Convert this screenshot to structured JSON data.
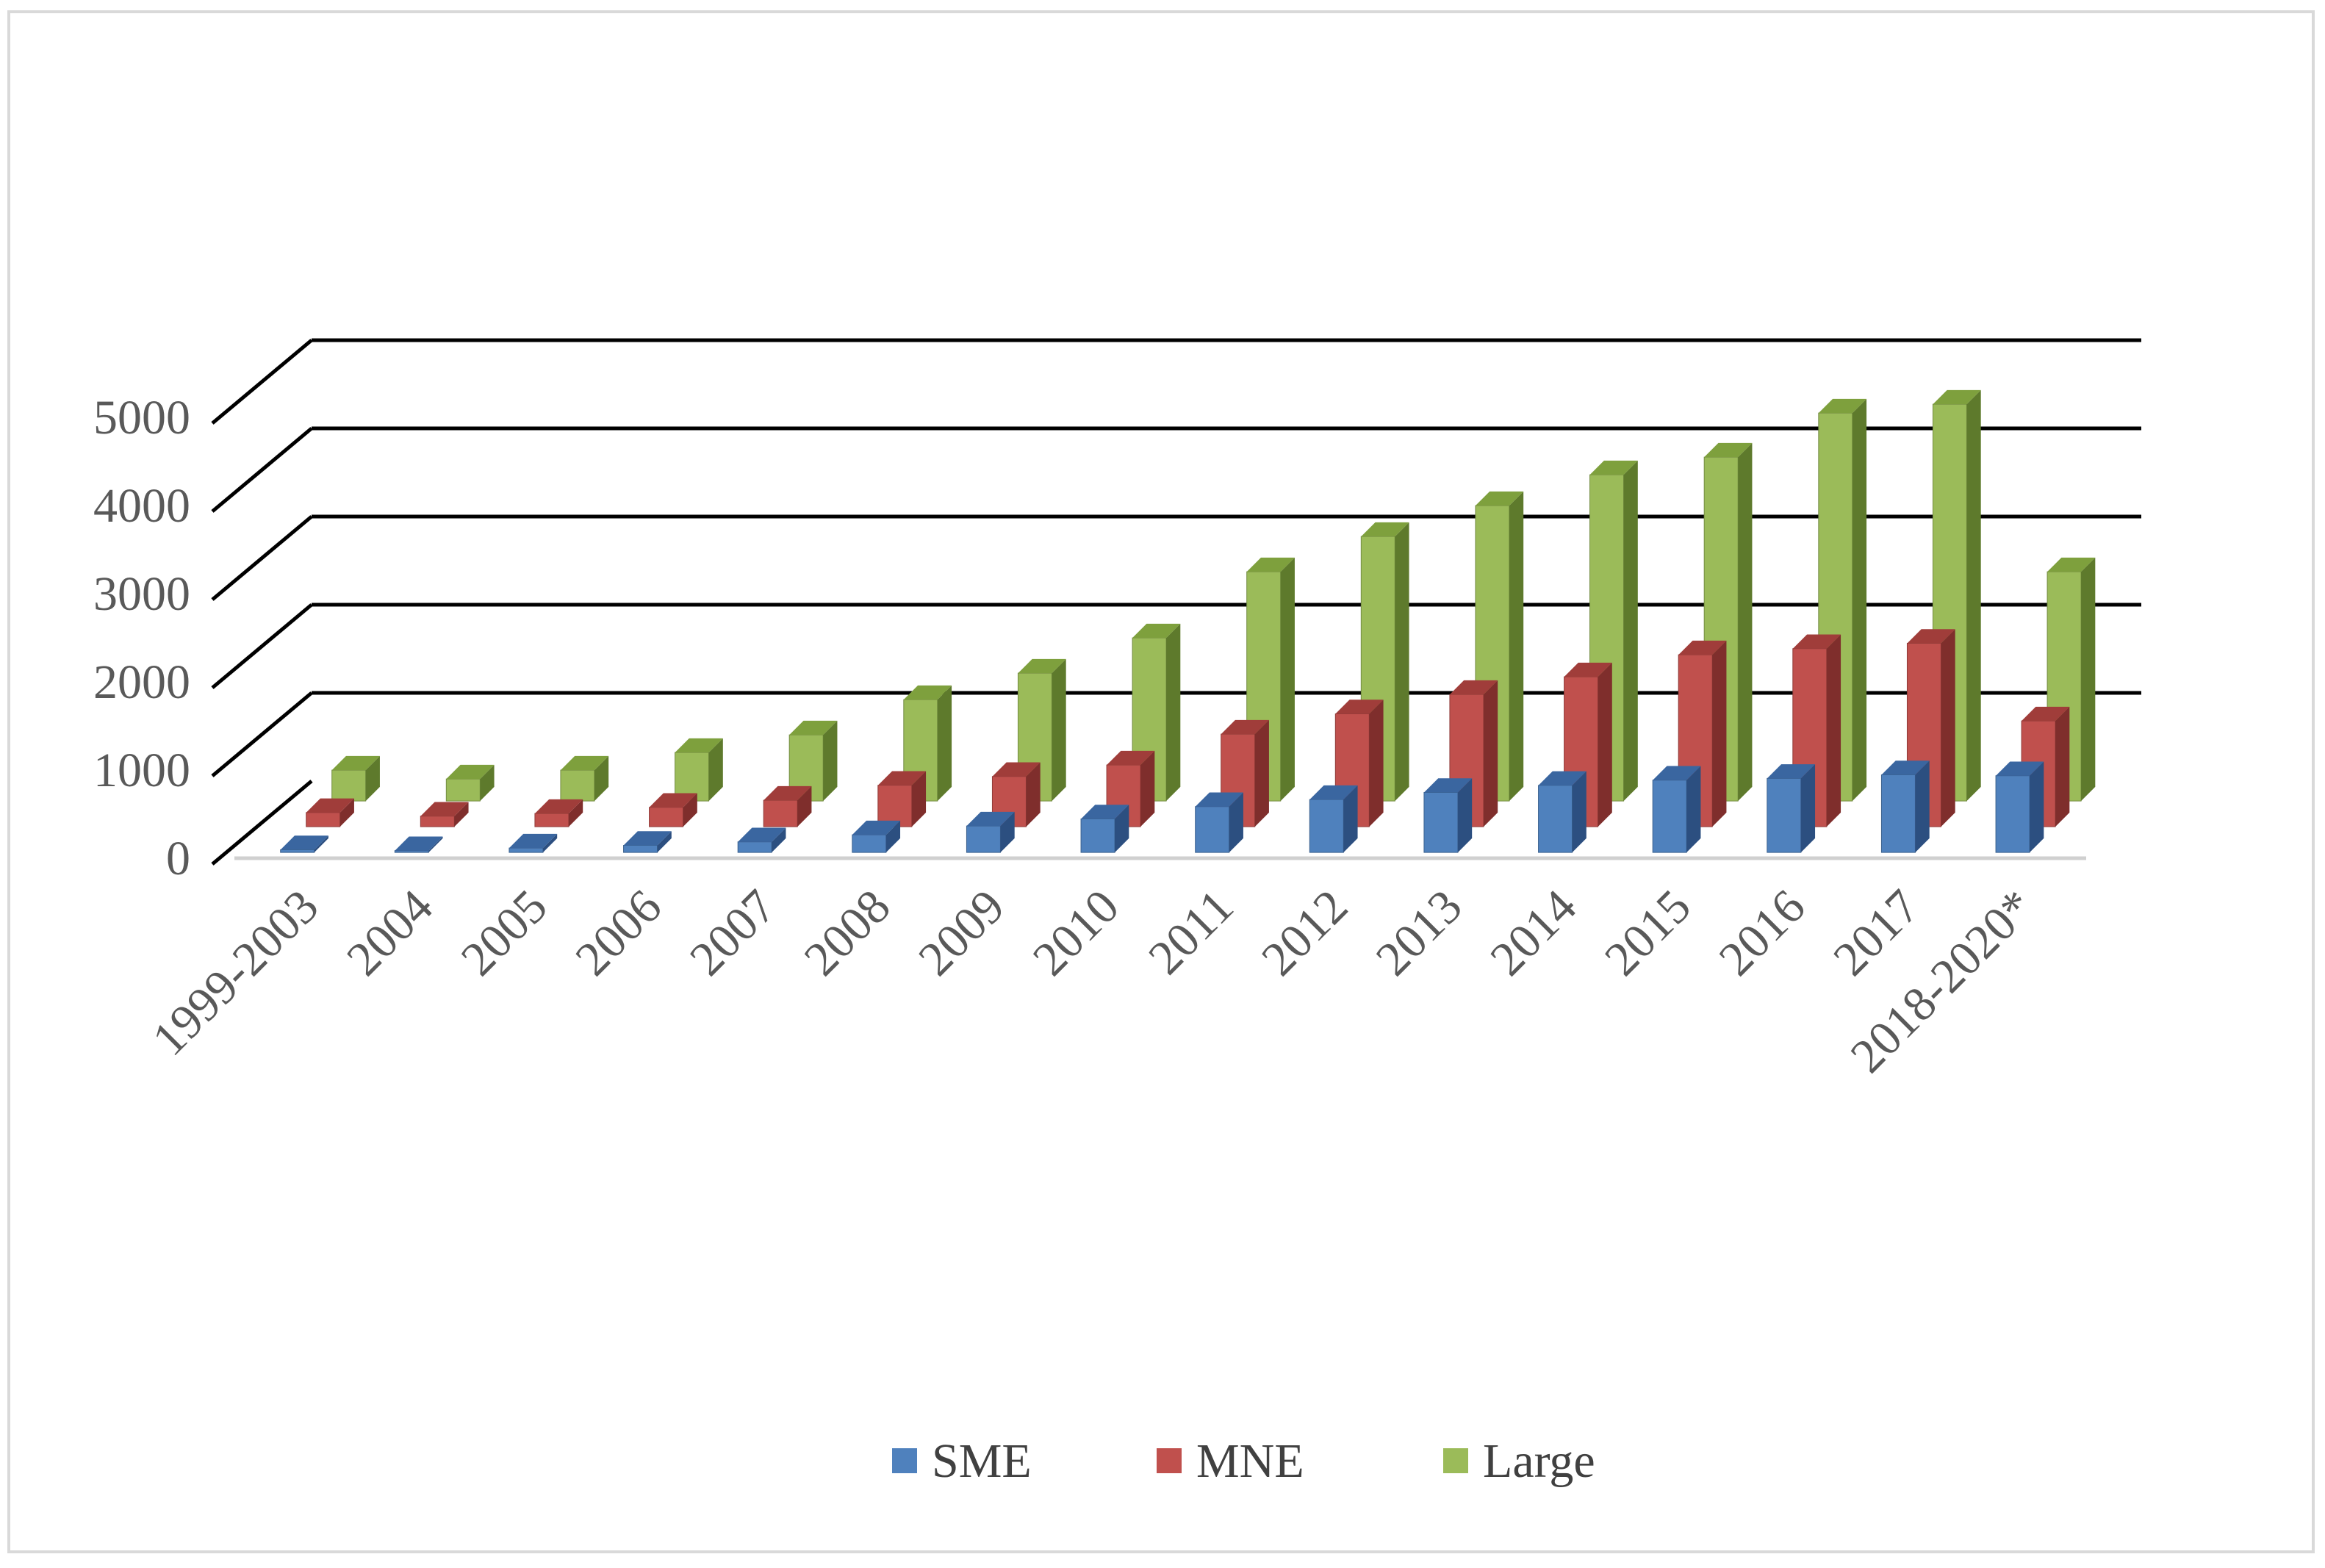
{
  "chart_data": {
    "type": "bar",
    "style": "3d-clustered-depth",
    "title": "",
    "xlabel": "",
    "ylabel": "",
    "ylim": [
      0,
      5000
    ],
    "yticks": [
      "0",
      "1000",
      "2000",
      "3000",
      "4000",
      "5000"
    ],
    "grid": true,
    "legend_position": "bottom-center",
    "categories": [
      "1999-2003",
      "2004",
      "2005",
      "2006",
      "2007",
      "2008",
      "2009",
      "2010",
      "2011",
      "2012",
      "2013",
      "2014",
      "2015",
      "2016",
      "2017",
      "2018-2020*"
    ],
    "series": [
      {
        "name": "SME",
        "color": "#4f81bd",
        "top": "#3a66a0",
        "side": "#2c4f80",
        "values": [
          30,
          20,
          50,
          80,
          120,
          200,
          300,
          380,
          520,
          600,
          680,
          760,
          820,
          840,
          880,
          870
        ]
      },
      {
        "name": "MNE",
        "color": "#c0504d",
        "top": "#a03d3a",
        "side": "#7f2e2c",
        "values": [
          160,
          120,
          150,
          220,
          300,
          470,
          570,
          700,
          1050,
          1280,
          1500,
          1700,
          1950,
          2020,
          2080,
          1200
        ]
      },
      {
        "name": "Large",
        "color": "#9bbb59",
        "top": "#7ea03d",
        "side": "#5e7a2c",
        "values": [
          350,
          250,
          350,
          550,
          750,
          1150,
          1450,
          1850,
          2600,
          3000,
          3350,
          3700,
          3900,
          4400,
          4500,
          2600
        ]
      }
    ]
  }
}
